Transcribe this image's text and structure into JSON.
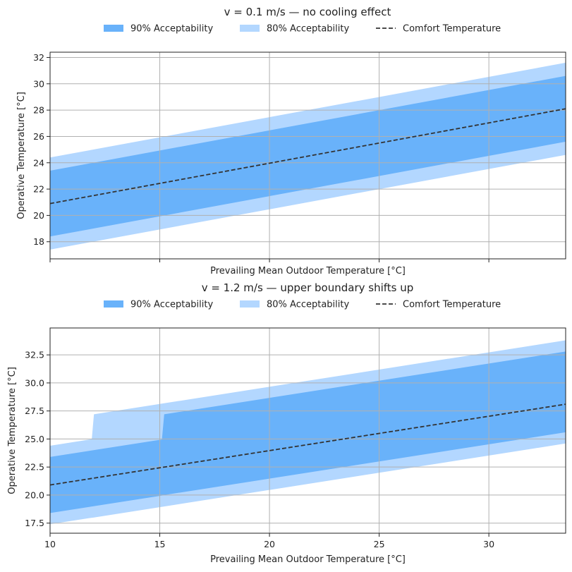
{
  "chart_data": [
    {
      "type": "area",
      "title": "v = 0.1 m/s — no cooling effect",
      "xlabel": "Prevailing Mean Outdoor Temperature [°C]",
      "ylabel": "Operative Temperature [°C]",
      "xlim": [
        10,
        33.5
      ],
      "ylim": [
        16.7,
        32.4
      ],
      "xticks": [
        10,
        15,
        20,
        25,
        30
      ],
      "xtick_labels": [
        "",
        "",
        "",
        "",
        ""
      ],
      "yticks": [
        18,
        20,
        22,
        24,
        26,
        28,
        30,
        32
      ],
      "ytick_labels": [
        "18",
        "20",
        "22",
        "24",
        "26",
        "28",
        "30",
        "32"
      ],
      "grid": true,
      "legend": {
        "placement": "top-center",
        "entries": [
          "90% Acceptability",
          "80% Acceptability",
          "Comfort Temperature"
        ]
      },
      "series": [
        {
          "name": "80% Acceptability",
          "style": "band",
          "color": "#b3d7ff",
          "x": [
            10,
            33.5
          ],
          "lower": [
            17.4,
            24.6
          ],
          "upper": [
            24.4,
            31.6
          ]
        },
        {
          "name": "90% Acceptability",
          "style": "band",
          "color": "#69b2fa",
          "x": [
            10,
            33.5
          ],
          "lower": [
            18.4,
            25.6
          ],
          "upper": [
            23.4,
            30.6
          ]
        },
        {
          "name": "Comfort Temperature",
          "style": "dashed-line",
          "color": "#333333",
          "x": [
            10,
            33.5
          ],
          "y": [
            20.9,
            28.1
          ]
        }
      ]
    },
    {
      "type": "area",
      "title": "v = 1.2 m/s — upper boundary shifts up",
      "xlabel": "Prevailing Mean Outdoor Temperature [°C]",
      "ylabel": "Operative Temperature [°C]",
      "xlim": [
        10,
        33.5
      ],
      "ylim": [
        16.6,
        34.9
      ],
      "xticks": [
        10,
        15,
        20,
        25,
        30
      ],
      "xtick_labels": [
        "10",
        "15",
        "20",
        "25",
        "30"
      ],
      "yticks": [
        17.5,
        20,
        22.5,
        25,
        27.5,
        30,
        32.5
      ],
      "ytick_labels": [
        "17.5",
        "20.0",
        "22.5",
        "25.0",
        "27.5",
        "30.0",
        "32.5"
      ],
      "grid": true,
      "legend": {
        "placement": "top-center",
        "entries": [
          "90% Acceptability",
          "80% Acceptability",
          "Comfort Temperature"
        ]
      },
      "series": [
        {
          "name": "80% Acceptability",
          "style": "band",
          "color": "#b3d7ff",
          "x": [
            10,
            11.9,
            12,
            33.5
          ],
          "lower": [
            17.4,
            17.98,
            18.0,
            24.6
          ],
          "upper": [
            24.4,
            24.98,
            27.2,
            33.8
          ]
        },
        {
          "name": "90% Acceptability",
          "style": "band",
          "color": "#69b2fa",
          "x": [
            10,
            15.1,
            15.2,
            33.5
          ],
          "lower": [
            18.4,
            19.96,
            20.0,
            25.6
          ],
          "upper": [
            23.4,
            24.96,
            27.2,
            32.8
          ]
        },
        {
          "name": "Comfort Temperature",
          "style": "dashed-line",
          "color": "#333333",
          "x": [
            10,
            33.5
          ],
          "y": [
            20.9,
            28.1
          ]
        }
      ]
    }
  ]
}
